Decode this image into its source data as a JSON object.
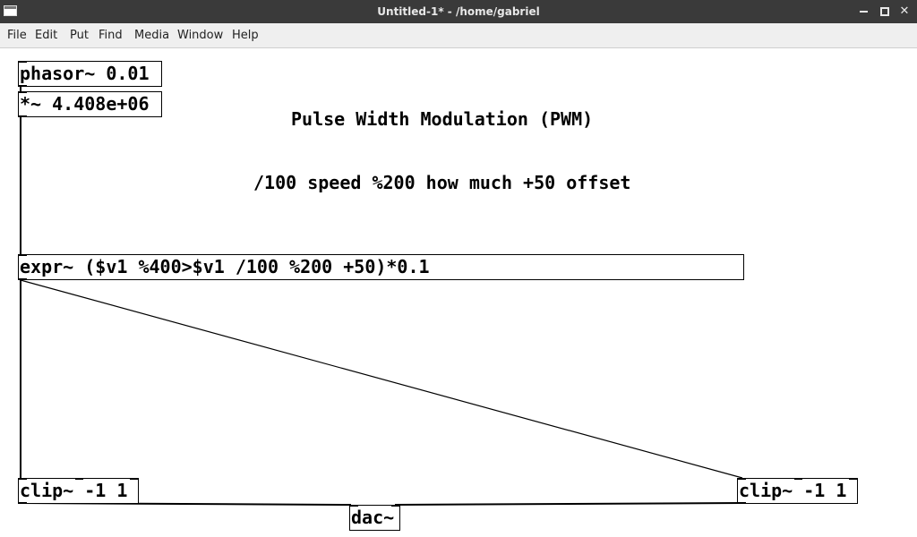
{
  "window": {
    "title": "Untitled-1* - /home/gabriel",
    "controls": {
      "minimize": "minimize",
      "maximize": "maximize",
      "close": "✕"
    }
  },
  "menubar": {
    "items": [
      "File",
      "Edit",
      "Put",
      "Find",
      "Media",
      "Window",
      "Help"
    ]
  },
  "patch": {
    "objects": {
      "phasor": "phasor~ 0.01",
      "multiply": "*~ 4.408e+06",
      "expr": "expr~ ($v1 %400>$v1 /100 %200 +50)*0.1",
      "clip_left": "clip~ -1 1",
      "clip_right": "clip~ -1 1",
      "dac": "dac~"
    },
    "comments": {
      "title": "Pulse Width Modulation (PWM)",
      "description": "/100 speed %200 how much +50 offset"
    }
  }
}
